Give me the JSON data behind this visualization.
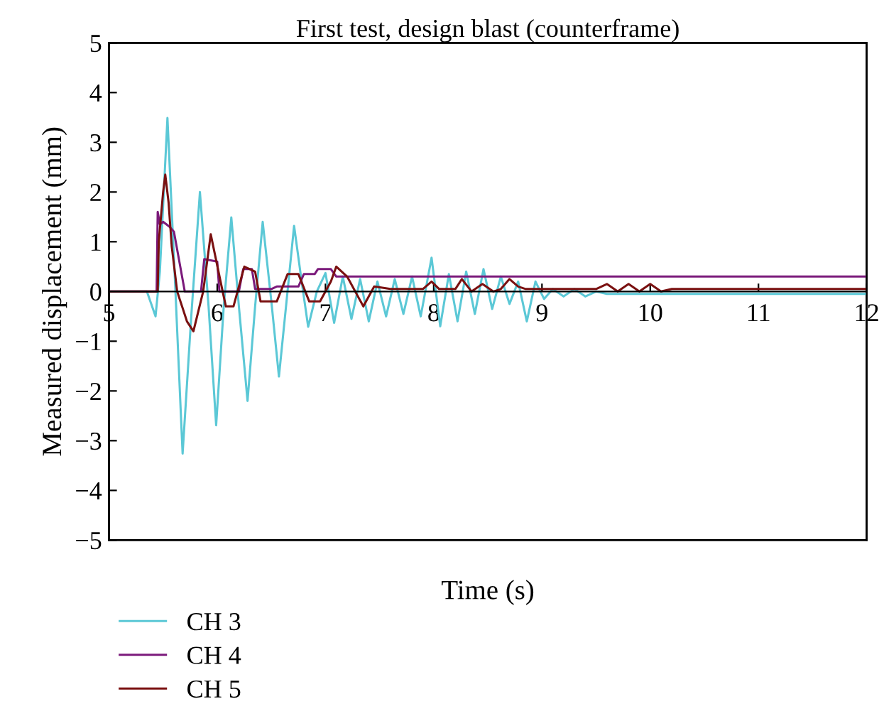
{
  "chart_data": {
    "type": "line",
    "title": "First test, design blast (counterframe)",
    "xlabel": "Time (s)",
    "ylabel": "Measured displacement (mm)",
    "xlim": [
      5,
      12
    ],
    "ylim": [
      -5,
      5
    ],
    "xticks": [
      5,
      6,
      7,
      8,
      9,
      10,
      11,
      12
    ],
    "yticks": [
      -5,
      -4,
      -3,
      -2,
      -1,
      0,
      1,
      2,
      3,
      4,
      5
    ],
    "grid": false,
    "legend": "bottom left",
    "marker": "none",
    "line_style": "solid",
    "series": [
      {
        "name": "CH 3",
        "color": "#5bc8d6",
        "x": [
          5.0,
          5.35,
          5.43,
          5.47,
          5.54,
          5.61,
          5.68,
          5.76,
          5.84,
          5.92,
          5.99,
          6.06,
          6.13,
          6.2,
          6.28,
          6.35,
          6.42,
          6.5,
          6.57,
          6.64,
          6.71,
          6.78,
          6.84,
          6.92,
          7.0,
          7.08,
          7.16,
          7.24,
          7.32,
          7.4,
          7.48,
          7.56,
          7.64,
          7.72,
          7.8,
          7.88,
          7.98,
          8.06,
          8.14,
          8.22,
          8.3,
          8.38,
          8.46,
          8.54,
          8.62,
          8.7,
          8.78,
          8.86,
          8.94,
          9.02,
          9.1,
          9.2,
          9.3,
          9.4,
          9.5,
          9.6,
          9.7,
          9.8,
          10.0,
          10.5,
          11.0,
          12.0
        ],
        "values": [
          0,
          0,
          -0.5,
          0.4,
          3.49,
          0.2,
          -3.26,
          -0.5,
          2.0,
          -0.3,
          -2.69,
          -0.3,
          1.49,
          -0.3,
          -2.2,
          -0.3,
          1.4,
          -0.2,
          -1.71,
          -0.2,
          1.32,
          0.2,
          -0.71,
          0.0,
          0.37,
          -0.63,
          0.3,
          -0.55,
          0.25,
          -0.6,
          0.2,
          -0.5,
          0.25,
          -0.45,
          0.3,
          -0.5,
          0.68,
          -0.7,
          0.35,
          -0.6,
          0.4,
          -0.45,
          0.45,
          -0.35,
          0.3,
          -0.25,
          0.2,
          -0.6,
          0.2,
          -0.15,
          0.05,
          -0.1,
          0.05,
          -0.1,
          0.0,
          -0.05,
          -0.05,
          -0.05,
          -0.05,
          -0.05,
          -0.05,
          -0.05
        ]
      },
      {
        "name": "CH 4",
        "color": "#7b1a7b",
        "x": [
          5.0,
          5.44,
          5.45,
          5.47,
          5.5,
          5.56,
          5.6,
          5.7,
          5.85,
          5.88,
          6.0,
          6.02,
          6.2,
          6.24,
          6.32,
          6.35,
          6.5,
          6.55,
          6.75,
          6.8,
          6.9,
          6.93,
          7.05,
          7.1,
          12.0
        ],
        "values": [
          0,
          0,
          1.6,
          1.35,
          1.4,
          1.3,
          1.2,
          0.0,
          0.0,
          0.65,
          0.6,
          0.0,
          0.0,
          0.45,
          0.45,
          0.05,
          0.05,
          0.1,
          0.1,
          0.35,
          0.35,
          0.45,
          0.45,
          0.3,
          0.3
        ]
      },
      {
        "name": "CH 5",
        "color": "#7a1010",
        "x": [
          5.0,
          5.45,
          5.46,
          5.5,
          5.52,
          5.55,
          5.58,
          5.63,
          5.72,
          5.78,
          5.87,
          5.94,
          6.05,
          6.08,
          6.15,
          6.25,
          6.35,
          6.4,
          6.55,
          6.65,
          6.75,
          6.85,
          6.95,
          7.05,
          7.1,
          7.2,
          7.35,
          7.45,
          7.6,
          7.9,
          7.98,
          8.05,
          8.2,
          8.26,
          8.35,
          8.45,
          8.55,
          8.62,
          8.7,
          8.78,
          8.85,
          9.0,
          9.5,
          9.6,
          9.7,
          9.8,
          9.9,
          10.0,
          10.1,
          10.2,
          10.5,
          12.0
        ],
        "values": [
          0,
          0,
          1.0,
          2.0,
          2.35,
          1.8,
          0.9,
          0.0,
          -0.6,
          -0.8,
          0.0,
          1.15,
          0.0,
          -0.3,
          -0.3,
          0.5,
          0.4,
          -0.2,
          -0.2,
          0.35,
          0.35,
          -0.2,
          -0.2,
          0.2,
          0.5,
          0.3,
          -0.3,
          0.1,
          0.05,
          0.05,
          0.2,
          0.05,
          0.05,
          0.25,
          0.0,
          0.15,
          0.0,
          0.05,
          0.25,
          0.1,
          0.05,
          0.05,
          0.05,
          0.15,
          0.0,
          0.15,
          0.0,
          0.15,
          0.0,
          0.05,
          0.05,
          0.05
        ]
      }
    ]
  }
}
